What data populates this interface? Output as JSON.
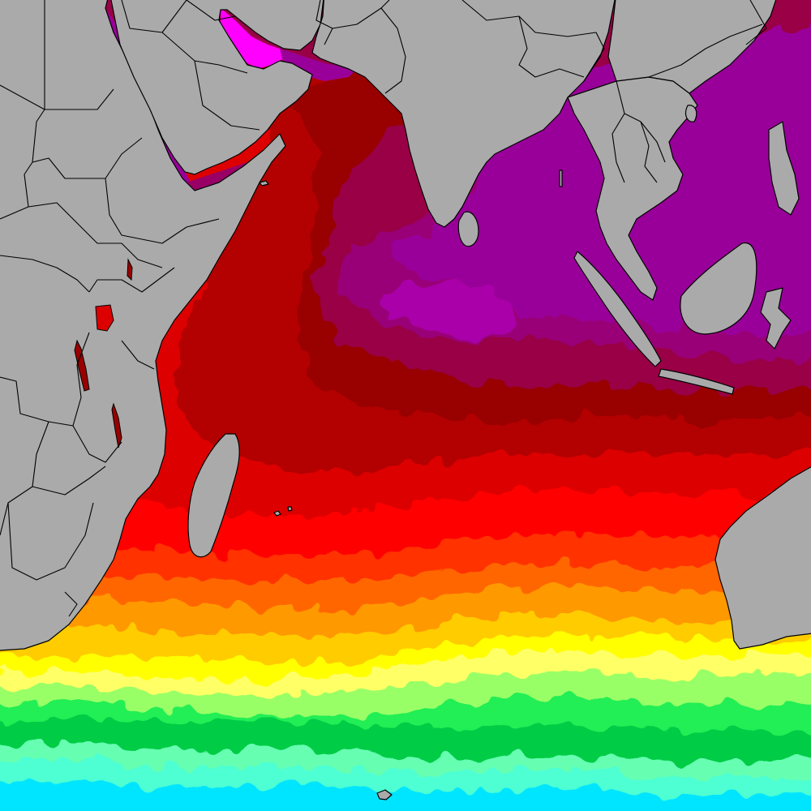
{
  "map": {
    "type": "sea-surface-temperature",
    "region": "indian-ocean",
    "land_color": "#aaaaaa",
    "border_color": "#000000",
    "color_scale": [
      {
        "band": "deep-cyan",
        "color": "#00e5ff"
      },
      {
        "band": "light-cyan",
        "color": "#4dffd2"
      },
      {
        "band": "aquamarine",
        "color": "#66ffb2"
      },
      {
        "band": "green",
        "color": "#00cc44"
      },
      {
        "band": "bright-green",
        "color": "#22ee55"
      },
      {
        "band": "light-green",
        "color": "#99ff66"
      },
      {
        "band": "pale-yellow",
        "color": "#ffff66"
      },
      {
        "band": "yellow",
        "color": "#ffff00"
      },
      {
        "band": "amber",
        "color": "#ffcc00"
      },
      {
        "band": "orange",
        "color": "#ff9900"
      },
      {
        "band": "dark-orange",
        "color": "#ff6600"
      },
      {
        "band": "red-orange",
        "color": "#ff3300"
      },
      {
        "band": "red",
        "color": "#ff0000"
      },
      {
        "band": "crimson",
        "color": "#dd0000"
      },
      {
        "band": "dark-red",
        "color": "#b30000"
      },
      {
        "band": "maroon",
        "color": "#990000"
      },
      {
        "band": "burgundy",
        "color": "#990044"
      },
      {
        "band": "plum",
        "color": "#990077"
      },
      {
        "band": "purple",
        "color": "#990099"
      },
      {
        "band": "light-purple",
        "color": "#aa00aa"
      },
      {
        "band": "magenta",
        "color": "#ff00ff"
      }
    ]
  }
}
